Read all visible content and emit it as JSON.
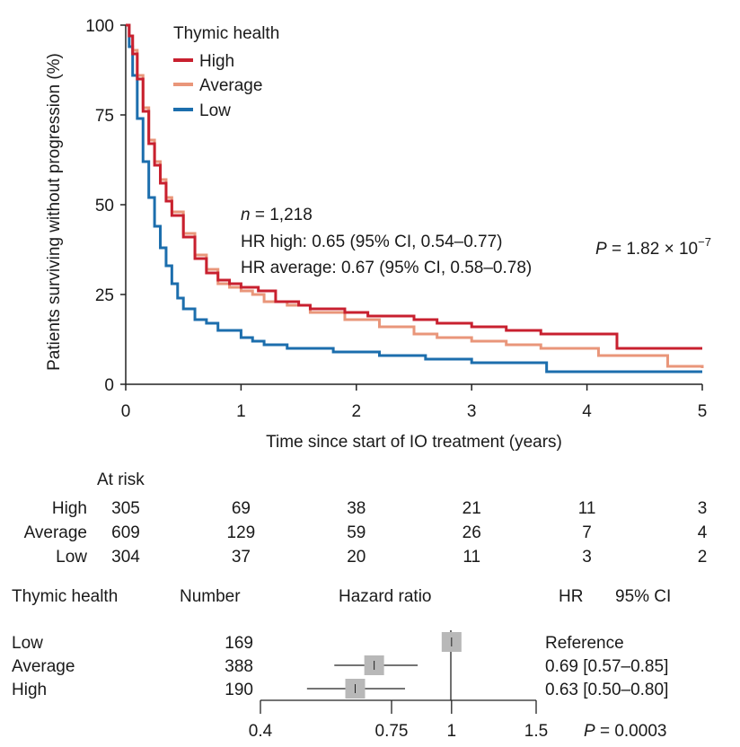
{
  "colors": {
    "High": "#c8202f",
    "Average": "#e9967a",
    "Low": "#1c6ead",
    "box": "#b8b8b8"
  },
  "chart_data": [
    {
      "type": "line",
      "subtype": "kaplan-meier",
      "xlabel": "Time since start of IO treatment (years)",
      "ylabel": "Patients surviving without progression (%)",
      "xlim": [
        0,
        5
      ],
      "ylim": [
        0,
        100
      ],
      "xticks": [
        "0",
        "1",
        "2",
        "3",
        "4",
        "5"
      ],
      "yticks": [
        "0",
        "25",
        "50",
        "75",
        "100"
      ],
      "legend": {
        "title": "Thymic health",
        "placement": "top-left",
        "entries": [
          "High",
          "Average",
          "Low"
        ]
      },
      "annotations": {
        "n_label": "n",
        "n_value": " = 1,218",
        "hr_high": "HR high: 0.65 (95% CI, 0.54–0.77)",
        "hr_average": "HR average: 0.67 (95% CI, 0.58–0.78)",
        "p_label": "P",
        "p_value": " = 1.82 × 10",
        "p_exp": "−7"
      },
      "series": [
        {
          "name": "High",
          "points": [
            [
              0,
              100
            ],
            [
              0.03,
              97
            ],
            [
              0.06,
              92
            ],
            [
              0.1,
              85
            ],
            [
              0.15,
              76
            ],
            [
              0.2,
              67
            ],
            [
              0.25,
              61
            ],
            [
              0.3,
              56
            ],
            [
              0.35,
              51
            ],
            [
              0.4,
              47
            ],
            [
              0.5,
              41
            ],
            [
              0.6,
              35
            ],
            [
              0.7,
              31
            ],
            [
              0.8,
              29
            ],
            [
              0.9,
              28
            ],
            [
              1.0,
              27
            ],
            [
              1.15,
              26
            ],
            [
              1.3,
              23
            ],
            [
              1.5,
              22
            ],
            [
              1.6,
              21
            ],
            [
              1.9,
              20
            ],
            [
              2.1,
              19
            ],
            [
              2.5,
              18
            ],
            [
              2.7,
              17
            ],
            [
              3.0,
              16
            ],
            [
              3.3,
              15
            ],
            [
              3.6,
              14
            ],
            [
              4.26,
              10
            ],
            [
              5.0,
              10
            ]
          ]
        },
        {
          "name": "Average",
          "points": [
            [
              0,
              100
            ],
            [
              0.03,
              97
            ],
            [
              0.06,
              93
            ],
            [
              0.1,
              86
            ],
            [
              0.15,
              77
            ],
            [
              0.2,
              68
            ],
            [
              0.25,
              62
            ],
            [
              0.3,
              57
            ],
            [
              0.35,
              52
            ],
            [
              0.4,
              48
            ],
            [
              0.5,
              42
            ],
            [
              0.6,
              36
            ],
            [
              0.7,
              32
            ],
            [
              0.8,
              28
            ],
            [
              0.9,
              27
            ],
            [
              1.0,
              26
            ],
            [
              1.1,
              25
            ],
            [
              1.2,
              23
            ],
            [
              1.4,
              22
            ],
            [
              1.6,
              20
            ],
            [
              1.9,
              18
            ],
            [
              2.2,
              16
            ],
            [
              2.5,
              14
            ],
            [
              2.7,
              13
            ],
            [
              3.0,
              12
            ],
            [
              3.3,
              11
            ],
            [
              3.6,
              10
            ],
            [
              4.1,
              8
            ],
            [
              4.6,
              8
            ],
            [
              4.7,
              5
            ],
            [
              5.0,
              4.5
            ]
          ]
        },
        {
          "name": "Low",
          "points": [
            [
              0,
              100
            ],
            [
              0.03,
              94
            ],
            [
              0.06,
              86
            ],
            [
              0.1,
              74
            ],
            [
              0.15,
              62
            ],
            [
              0.2,
              52
            ],
            [
              0.25,
              44
            ],
            [
              0.3,
              38
            ],
            [
              0.35,
              33
            ],
            [
              0.4,
              28
            ],
            [
              0.45,
              24
            ],
            [
              0.5,
              21
            ],
            [
              0.6,
              18
            ],
            [
              0.7,
              17
            ],
            [
              0.8,
              15
            ],
            [
              1.0,
              13
            ],
            [
              1.1,
              12
            ],
            [
              1.2,
              11
            ],
            [
              1.4,
              10
            ],
            [
              1.8,
              9
            ],
            [
              2.2,
              8
            ],
            [
              2.6,
              7
            ],
            [
              3.0,
              6
            ],
            [
              3.64,
              6
            ],
            [
              3.65,
              3.5
            ],
            [
              5.0,
              3.5
            ]
          ]
        }
      ]
    },
    {
      "type": "table",
      "title": "At risk",
      "columns_time": [
        0,
        1,
        2,
        3,
        4,
        5
      ],
      "rows": [
        {
          "label": "High",
          "values": [
            "305",
            "69",
            "38",
            "21",
            "11",
            "3"
          ]
        },
        {
          "label": "Average",
          "values": [
            "609",
            "129",
            "59",
            "26",
            "7",
            "4"
          ]
        },
        {
          "label": "Low",
          "values": [
            "304",
            "37",
            "20",
            "11",
            "3",
            "2"
          ]
        }
      ]
    },
    {
      "type": "scatter",
      "subtype": "forest",
      "headers": {
        "group": "Thymic health",
        "number": "Number",
        "plot": "Hazard ratio",
        "hr": "HR",
        "ci": "95% CI"
      },
      "xscale": "log",
      "xlim": [
        0.4,
        1.5
      ],
      "xticks": [
        "0.4",
        "0.75",
        "1",
        "1.5"
      ],
      "p_label": "P",
      "p_value": " = 0.0003",
      "rows": [
        {
          "group": "Low",
          "number": "169",
          "hr": 1.0,
          "lo": null,
          "hi": null,
          "text": "Reference"
        },
        {
          "group": "Average",
          "number": "388",
          "hr": 0.69,
          "lo": 0.57,
          "hi": 0.85,
          "text": "0.69 [0.57–0.85]"
        },
        {
          "group": "High",
          "number": "190",
          "hr": 0.63,
          "lo": 0.5,
          "hi": 0.8,
          "text": "0.63 [0.50–0.80]"
        }
      ]
    }
  ]
}
